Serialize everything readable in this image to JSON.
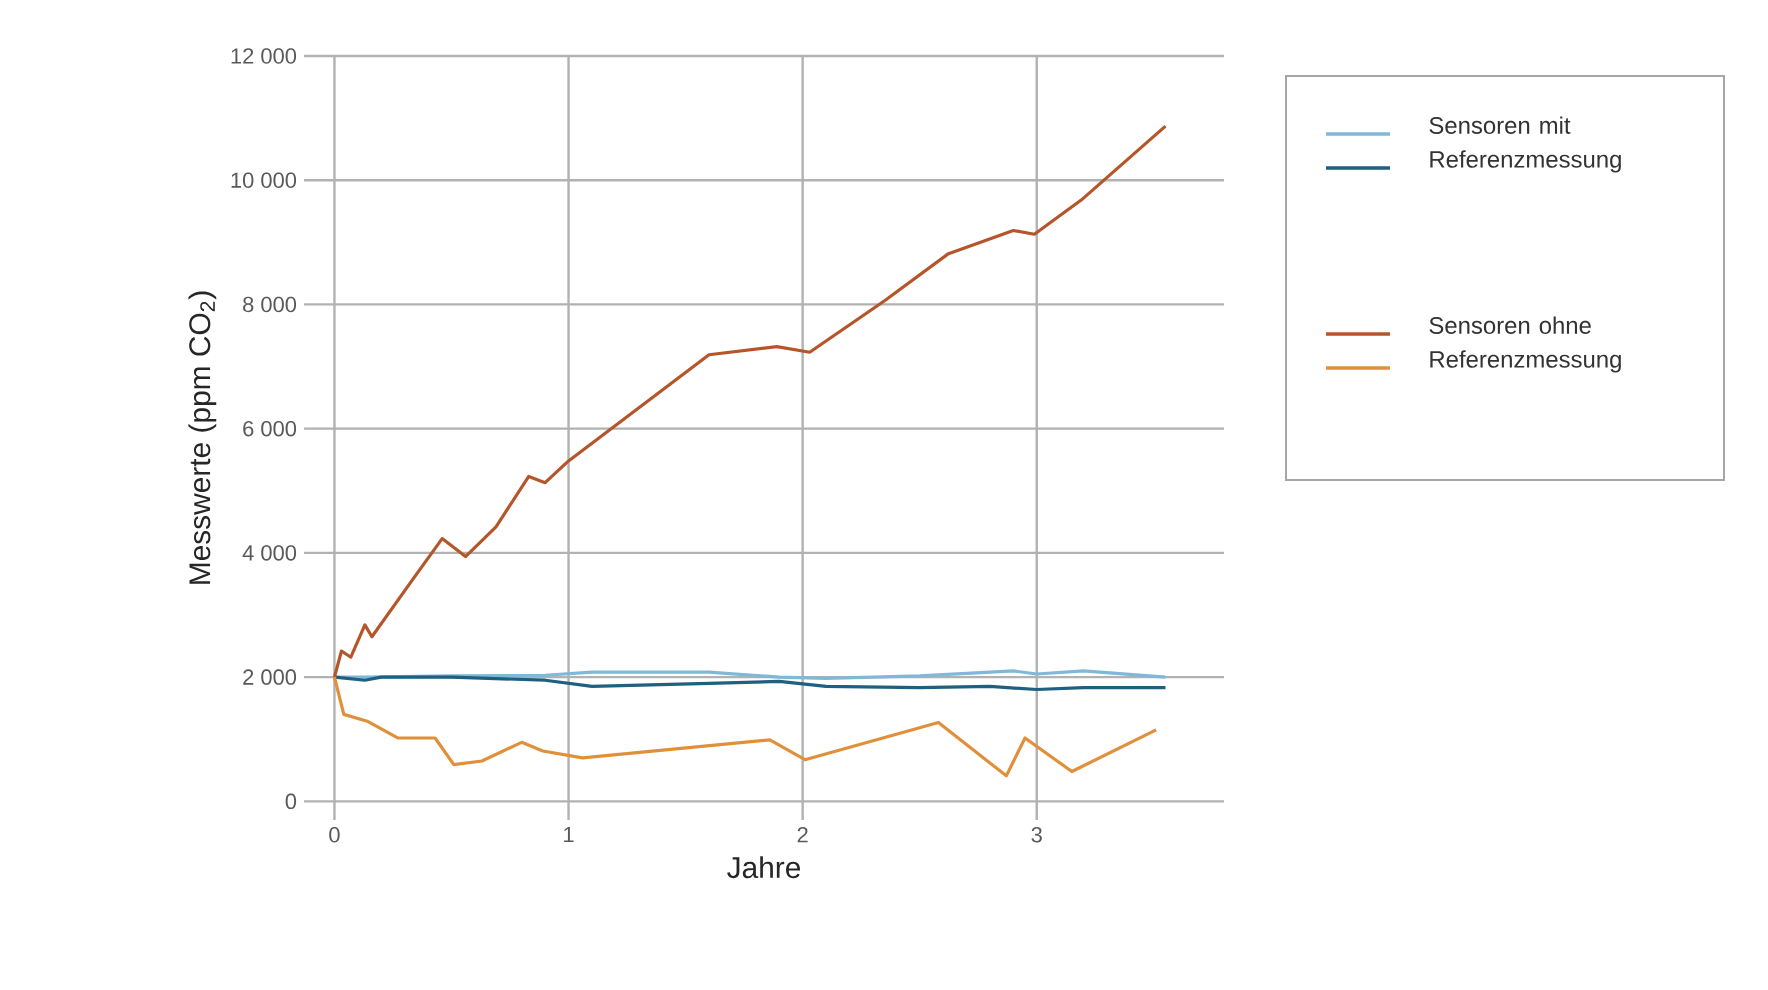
{
  "chart_data": {
    "type": "line",
    "xlabel": "Jahre",
    "ylabel": "Messwerte (ppm CO$_{2}$)",
    "xlim": [
      -0.13,
      3.8
    ],
    "xticks": [
      0,
      1,
      2,
      3
    ],
    "ylim": [
      -300,
      12000
    ],
    "yticks": [
      0,
      {
        "value": 2000,
        "label": "2 000"
      },
      {
        "value": 4000,
        "label": "4 000"
      },
      {
        "value": 6000,
        "label": "6 000"
      },
      {
        "value": 8000,
        "label": "8 000"
      },
      {
        "value": 10000,
        "label": "10 000"
      },
      {
        "value": 12000,
        "label": "12 000"
      }
    ],
    "grid": true,
    "legend": "right",
    "marker": "none",
    "line_style": "solid",
    "series": [
      {
        "name": "Sensoren mit Referenzmessung",
        "color": "#7fb8d8",
        "x": [
          0,
          0.13,
          0.5,
          0.9,
          1.1,
          1.6,
          1.9,
          2.1,
          2.5,
          2.9,
          3.0,
          3.2,
          3.55
        ],
        "values": [
          2000,
          2000,
          2020,
          2030,
          2080,
          2080,
          2000,
          1980,
          2020,
          2100,
          2050,
          2100,
          2000
        ]
      },
      {
        "color": "#1f5f80",
        "x": [
          0,
          0.13,
          0.2,
          0.5,
          0.9,
          1.1,
          1.6,
          1.9,
          2.1,
          2.5,
          2.8,
          3.0,
          3.2,
          3.55
        ],
        "values": [
          2000,
          1950,
          2000,
          2000,
          1950,
          1850,
          1900,
          1930,
          1850,
          1830,
          1850,
          1800,
          1830,
          1830
        ]
      },
      {
        "name": "Sensoren ohne Referenzmessung",
        "color": "#b5562a",
        "x": [
          0,
          0.03,
          0.07,
          0.13,
          0.16,
          0.33,
          0.46,
          0.56,
          0.69,
          0.83,
          0.9,
          1.0,
          1.6,
          1.89,
          2.03,
          2.35,
          2.62,
          2.9,
          2.99,
          3.19,
          3.55
        ],
        "values": [
          2000,
          2420,
          2320,
          2840,
          2650,
          3550,
          4230,
          3940,
          4420,
          5230,
          5130,
          5480,
          7190,
          7320,
          7230,
          8060,
          8810,
          9190,
          9130,
          9680,
          10870
        ]
      },
      {
        "color": "#e0903a",
        "x": [
          0,
          0.04,
          0.14,
          0.27,
          0.43,
          0.51,
          0.63,
          0.8,
          0.89,
          1.06,
          1.86,
          2.01,
          2.58,
          2.87,
          2.95,
          3.15,
          3.51
        ],
        "values": [
          2000,
          1400,
          1290,
          1020,
          1020,
          590,
          650,
          950,
          810,
          700,
          990,
          670,
          1270,
          410,
          1020,
          480,
          1150
        ]
      }
    ]
  }
}
